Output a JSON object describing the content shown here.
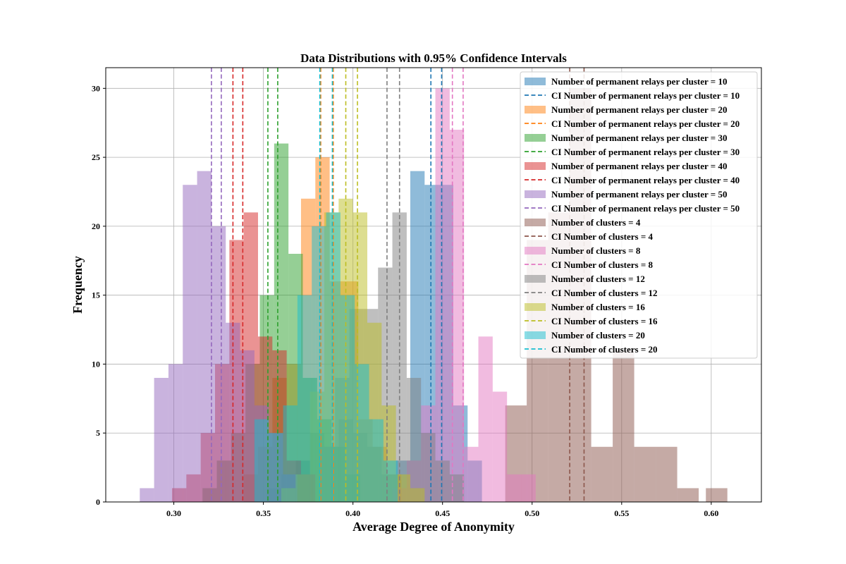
{
  "chart_data": {
    "type": "histogram",
    "title": "Data Distributions with 0.95% Confidence Intervals",
    "xlabel": "Average Degree of Anonymity",
    "ylabel": "Frequency",
    "xlim": [
      0.262,
      0.628
    ],
    "ylim": [
      0,
      31.5
    ],
    "xticks": [
      "0.30",
      "0.35",
      "0.40",
      "0.45",
      "0.50",
      "0.55",
      "0.60"
    ],
    "yticks": [
      "0",
      "5",
      "10",
      "15",
      "20",
      "25",
      "30"
    ],
    "grid": true,
    "legend_position": "top-right",
    "series": [
      {
        "name": "Number of permanent relays per cluster = 10",
        "ci_name": "CI Number of permanent relays per cluster = 10",
        "color": "#1f77b4",
        "ci": [
          0.4435,
          0.4495
        ],
        "bins": [
          [
            0.352,
            0.36,
            1
          ],
          [
            0.36,
            0.368,
            2
          ],
          [
            0.368,
            0.376,
            3
          ],
          [
            0.376,
            0.384,
            5
          ],
          [
            0.384,
            0.392,
            4
          ],
          [
            0.392,
            0.4,
            6
          ],
          [
            0.4,
            0.408,
            5
          ],
          [
            0.408,
            0.416,
            4
          ],
          [
            0.416,
            0.424,
            2
          ],
          [
            0.424,
            0.432,
            3
          ],
          [
            0.432,
            0.44,
            24
          ],
          [
            0.44,
            0.448,
            23
          ],
          [
            0.448,
            0.456,
            23
          ],
          [
            0.456,
            0.464,
            7
          ],
          [
            0.464,
            0.472,
            3
          ]
        ]
      },
      {
        "name": "Number of permanent relays per cluster = 20",
        "ci_name": "CI Number of permanent relays per cluster = 20",
        "color": "#ff7f0e",
        "ci": [
          0.382,
          0.389
        ],
        "bins": [
          [
            0.339,
            0.347,
            2
          ],
          [
            0.347,
            0.355,
            4
          ],
          [
            0.355,
            0.363,
            9
          ],
          [
            0.363,
            0.371,
            10
          ],
          [
            0.371,
            0.379,
            22
          ],
          [
            0.379,
            0.387,
            25
          ],
          [
            0.387,
            0.395,
            16
          ],
          [
            0.395,
            0.403,
            16
          ],
          [
            0.403,
            0.411,
            6
          ],
          [
            0.411,
            0.419,
            4
          ],
          [
            0.419,
            0.427,
            2
          ]
        ]
      },
      {
        "name": "Number of permanent relays per cluster = 30",
        "ci_name": "CI Number of permanent relays per cluster = 30",
        "color": "#2ca02c",
        "ci": [
          0.3525,
          0.358
        ],
        "bins": [
          [
            0.316,
            0.324,
            1
          ],
          [
            0.324,
            0.332,
            3
          ],
          [
            0.332,
            0.34,
            5
          ],
          [
            0.34,
            0.348,
            10
          ],
          [
            0.348,
            0.356,
            15
          ],
          [
            0.356,
            0.364,
            26
          ],
          [
            0.364,
            0.372,
            18
          ],
          [
            0.372,
            0.38,
            9
          ],
          [
            0.38,
            0.388,
            6
          ],
          [
            0.388,
            0.396,
            4
          ],
          [
            0.396,
            0.404,
            2
          ]
        ]
      },
      {
        "name": "Number of permanent relays per cluster = 40",
        "ci_name": "CI Number of permanent relays per cluster = 40",
        "color": "#d62728",
        "ci": [
          0.333,
          0.3385
        ],
        "bins": [
          [
            0.299,
            0.307,
            1
          ],
          [
            0.307,
            0.315,
            2
          ],
          [
            0.315,
            0.323,
            5
          ],
          [
            0.323,
            0.331,
            10
          ],
          [
            0.331,
            0.339,
            19
          ],
          [
            0.339,
            0.347,
            21
          ],
          [
            0.347,
            0.355,
            12
          ],
          [
            0.355,
            0.363,
            11
          ],
          [
            0.363,
            0.371,
            3
          ],
          [
            0.371,
            0.379,
            2
          ]
        ]
      },
      {
        "name": "Number of permanent relays per cluster = 50",
        "ci_name": "CI Number of permanent relays per cluster = 50",
        "color": "#9467bd",
        "ci": [
          0.321,
          0.3265
        ],
        "bins": [
          [
            0.281,
            0.289,
            1
          ],
          [
            0.289,
            0.297,
            9
          ],
          [
            0.297,
            0.305,
            10
          ],
          [
            0.305,
            0.313,
            23
          ],
          [
            0.313,
            0.321,
            24
          ],
          [
            0.321,
            0.329,
            20
          ],
          [
            0.329,
            0.337,
            13
          ],
          [
            0.337,
            0.345,
            11
          ],
          [
            0.345,
            0.353,
            7
          ],
          [
            0.353,
            0.361,
            5
          ],
          [
            0.361,
            0.369,
            2
          ]
        ]
      },
      {
        "name": "Number of clusters = 4",
        "ci_name": "CI Number of clusters = 4",
        "color": "#8c564b",
        "ci": [
          0.521,
          0.529
        ],
        "bins": [
          [
            0.485,
            0.497,
            7
          ],
          [
            0.497,
            0.509,
            19
          ],
          [
            0.509,
            0.521,
            21
          ],
          [
            0.521,
            0.533,
            30
          ],
          [
            0.533,
            0.545,
            4
          ],
          [
            0.545,
            0.557,
            11
          ],
          [
            0.557,
            0.569,
            4
          ],
          [
            0.569,
            0.581,
            4
          ],
          [
            0.581,
            0.593,
            1
          ],
          [
            0.597,
            0.609,
            1
          ]
        ]
      },
      {
        "name": "Number of clusters = 8",
        "ci_name": "CI Number of clusters = 8",
        "color": "#e377c2",
        "ci": [
          0.4555,
          0.4615
        ],
        "bins": [
          [
            0.422,
            0.43,
            1
          ],
          [
            0.43,
            0.438,
            3
          ],
          [
            0.438,
            0.446,
            7
          ],
          [
            0.446,
            0.454,
            30
          ],
          [
            0.454,
            0.462,
            27
          ],
          [
            0.462,
            0.47,
            4
          ],
          [
            0.47,
            0.478,
            12
          ],
          [
            0.478,
            0.486,
            8
          ],
          [
            0.486,
            0.494,
            2
          ],
          [
            0.494,
            0.502,
            2
          ]
        ]
      },
      {
        "name": "Number of clusters = 12",
        "ci_name": "CI Number of clusters = 12",
        "color": "#7f7f7f",
        "ci": [
          0.419,
          0.426
        ],
        "bins": [
          [
            0.382,
            0.39,
            4
          ],
          [
            0.39,
            0.398,
            9
          ],
          [
            0.398,
            0.406,
            14
          ],
          [
            0.406,
            0.414,
            14
          ],
          [
            0.414,
            0.422,
            17
          ],
          [
            0.422,
            0.43,
            21
          ],
          [
            0.43,
            0.438,
            9
          ],
          [
            0.438,
            0.446,
            5
          ],
          [
            0.446,
            0.454,
            3
          ],
          [
            0.454,
            0.462,
            2
          ]
        ]
      },
      {
        "name": "Number of clusters = 16",
        "ci_name": "CI Number of clusters = 16",
        "color": "#bcbd22",
        "ci": [
          0.396,
          0.4025
        ],
        "bins": [
          [
            0.36,
            0.368,
            1
          ],
          [
            0.368,
            0.376,
            2
          ],
          [
            0.376,
            0.384,
            8
          ],
          [
            0.384,
            0.392,
            21
          ],
          [
            0.392,
            0.4,
            22
          ],
          [
            0.4,
            0.408,
            21
          ],
          [
            0.408,
            0.416,
            13
          ],
          [
            0.416,
            0.424,
            7
          ],
          [
            0.424,
            0.432,
            2
          ],
          [
            0.432,
            0.44,
            1
          ]
        ]
      },
      {
        "name": "Number of clusters = 20",
        "ci_name": "CI Number of clusters = 20",
        "color": "#17becf",
        "ci": [
          0.3815,
          0.3885
        ],
        "bins": [
          [
            0.345,
            0.353,
            6
          ],
          [
            0.353,
            0.361,
            5
          ],
          [
            0.361,
            0.369,
            7
          ],
          [
            0.369,
            0.377,
            15
          ],
          [
            0.377,
            0.385,
            20
          ],
          [
            0.385,
            0.393,
            21
          ],
          [
            0.393,
            0.401,
            15
          ],
          [
            0.401,
            0.409,
            10
          ],
          [
            0.409,
            0.417,
            6
          ],
          [
            0.417,
            0.425,
            3
          ]
        ]
      }
    ]
  }
}
